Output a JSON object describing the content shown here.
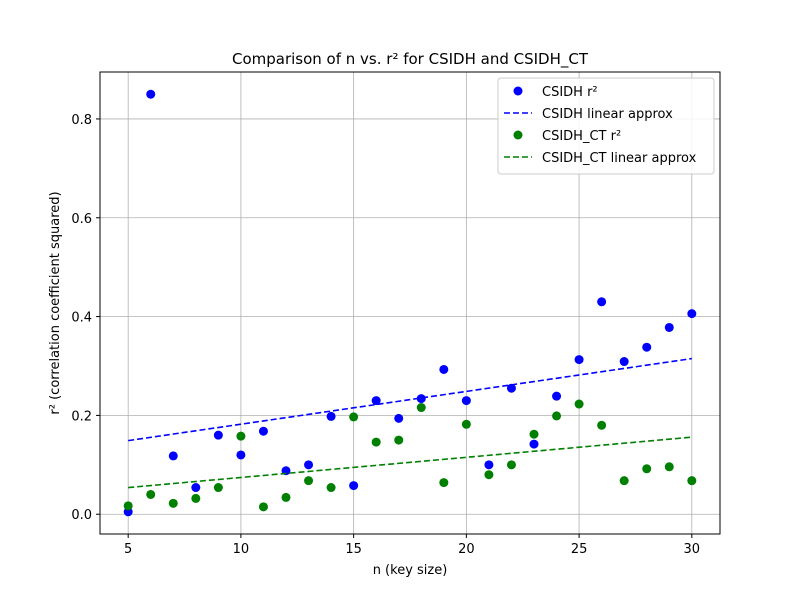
{
  "chart_data": {
    "type": "scatter",
    "title": "Comparison of n vs. r² for CSIDH and CSIDH_CT",
    "xlabel": "n (key size)",
    "ylabel": "r² (correlation coefficient squared)",
    "xlim": [
      3.75,
      31.25
    ],
    "ylim": [
      -0.04,
      0.895
    ],
    "xticks": [
      5,
      10,
      15,
      20,
      25,
      30
    ],
    "yticks": [
      0.0,
      0.2,
      0.4,
      0.6,
      0.8
    ],
    "ytick_labels": [
      "0.0",
      "0.2",
      "0.4",
      "0.6",
      "0.8"
    ],
    "grid": true,
    "legend_position": "top-right",
    "series": [
      {
        "name": "CSIDH r²",
        "kind": "points",
        "color": "#0000ff",
        "x": [
          5,
          6,
          7,
          8,
          9,
          10,
          11,
          12,
          13,
          14,
          15,
          16,
          17,
          18,
          19,
          20,
          21,
          22,
          23,
          24,
          25,
          26,
          27,
          28,
          29,
          30
        ],
        "y": [
          0.005,
          0.85,
          0.118,
          0.054,
          0.16,
          0.12,
          0.168,
          0.088,
          0.1,
          0.198,
          0.058,
          0.23,
          0.194,
          0.234,
          0.293,
          0.23,
          0.1,
          0.255,
          0.142,
          0.239,
          0.313,
          0.43,
          0.309,
          0.338,
          0.378,
          0.406
        ]
      },
      {
        "name": "CSIDH linear approx",
        "kind": "dashed-line",
        "color": "#0000ff",
        "x": [
          5,
          30
        ],
        "y": [
          0.149,
          0.315
        ]
      },
      {
        "name": "CSIDH_CT r²",
        "kind": "points",
        "color": "#008000",
        "x": [
          5,
          6,
          7,
          8,
          9,
          10,
          11,
          12,
          13,
          14,
          15,
          16,
          17,
          18,
          19,
          20,
          21,
          22,
          23,
          24,
          25,
          26,
          27,
          28,
          29,
          30
        ],
        "y": [
          0.017,
          0.04,
          0.022,
          0.032,
          0.054,
          0.158,
          0.015,
          0.034,
          0.068,
          0.054,
          0.197,
          0.146,
          0.15,
          0.216,
          0.064,
          0.182,
          0.08,
          0.1,
          0.162,
          0.199,
          0.223,
          0.18,
          0.068,
          0.092,
          0.096,
          0.068
        ]
      },
      {
        "name": "CSIDH_CT linear approx",
        "kind": "dashed-line",
        "color": "#008000",
        "x": [
          5,
          30
        ],
        "y": [
          0.054,
          0.156
        ]
      }
    ]
  }
}
